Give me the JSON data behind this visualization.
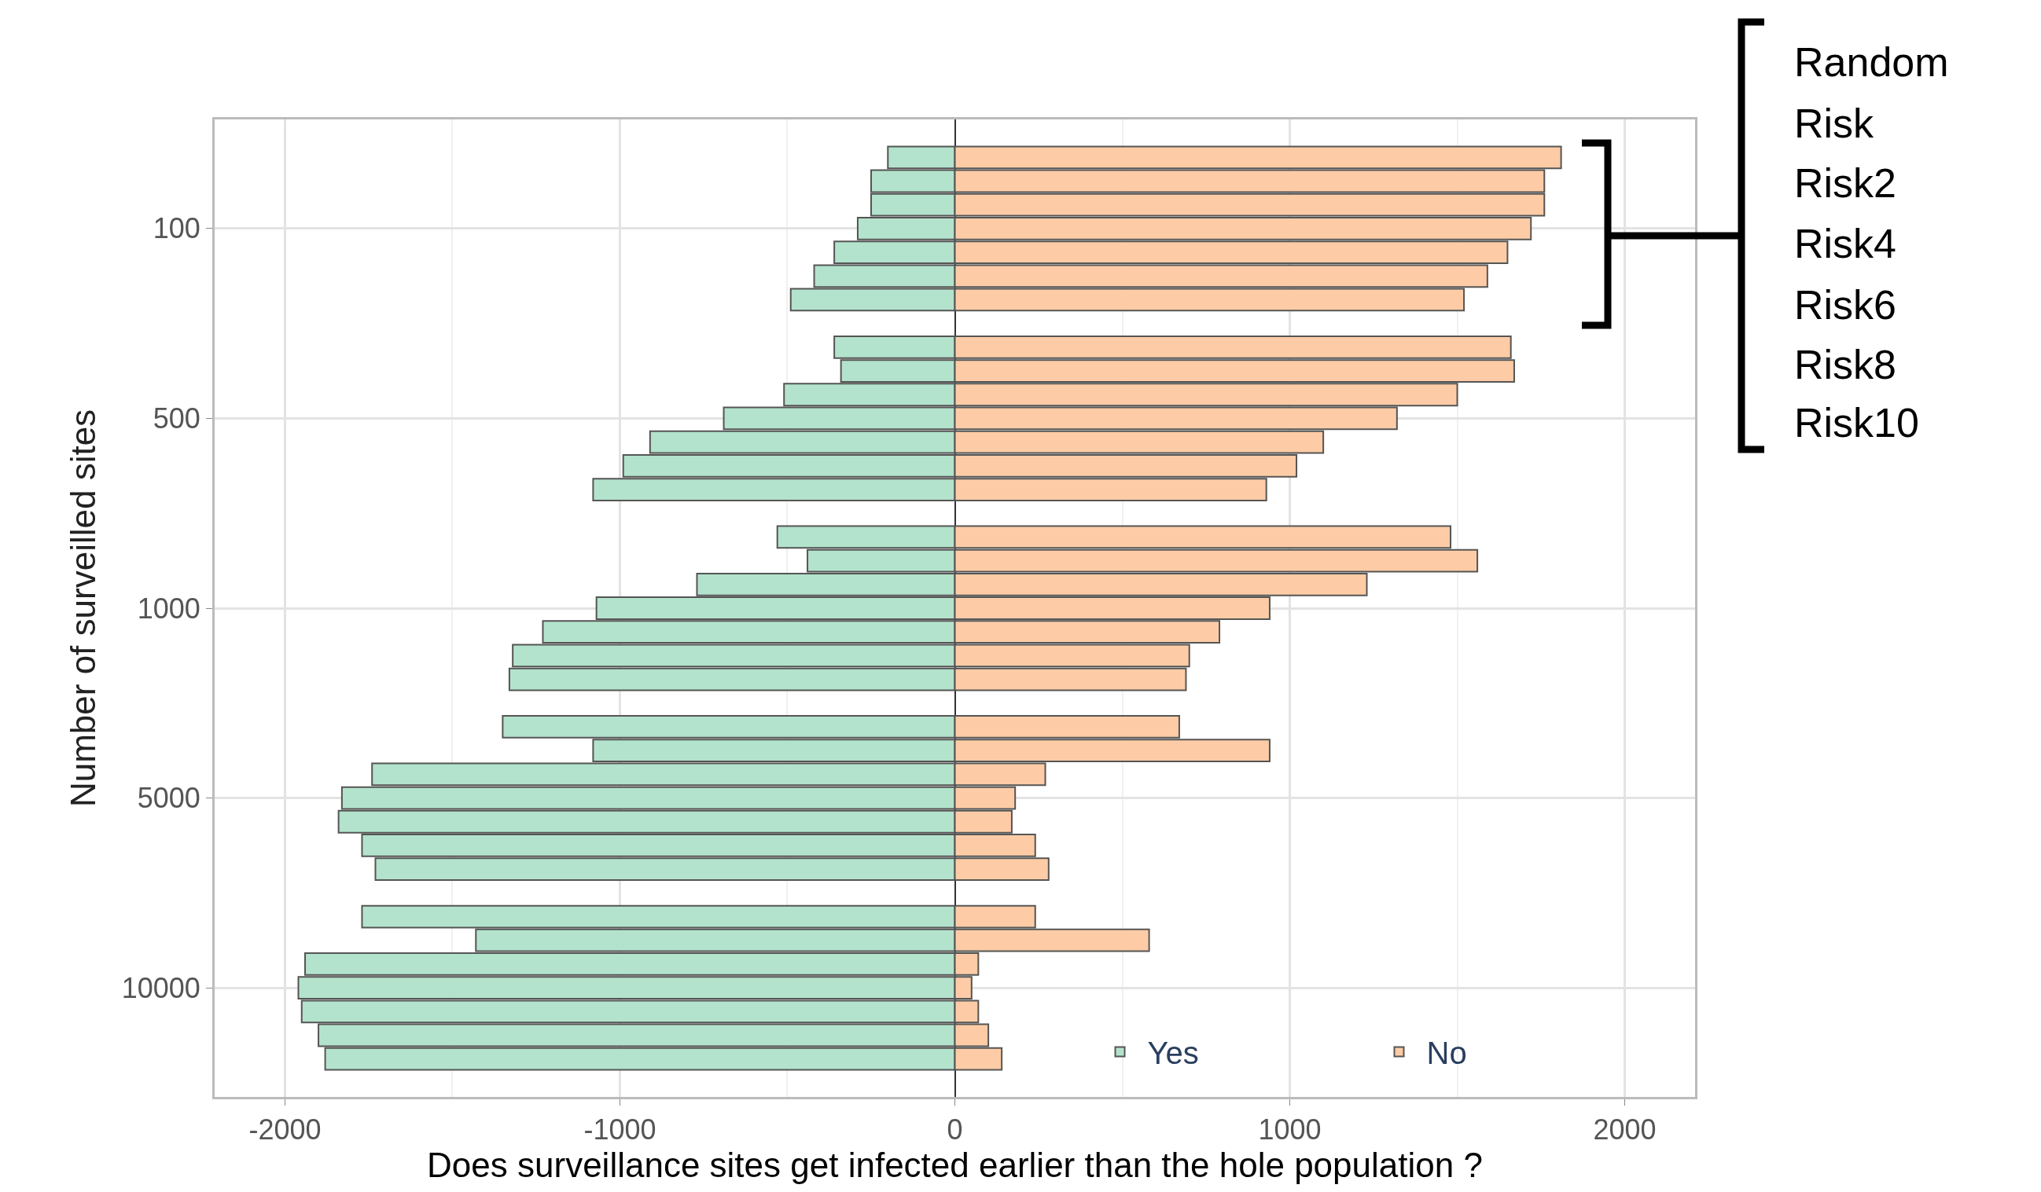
{
  "chart_data": {
    "type": "bar",
    "orientation": "horizontal",
    "stacked": true,
    "categories": [
      null,
      null,
      null,
      "100",
      null,
      null,
      null,
      null,
      null,
      null,
      null,
      "500",
      null,
      null,
      null,
      null,
      null,
      null,
      null,
      "1000",
      null,
      null,
      null,
      null,
      null,
      null,
      null,
      "5000",
      null,
      null,
      null,
      null,
      null,
      null,
      null,
      "10000",
      null,
      null,
      null
    ],
    "series": [
      {
        "name": "Yes",
        "color": "#b3e3cc",
        "values": [
          -200,
          -250,
          -250,
          -290,
          -360,
          -420,
          -490,
          null,
          -360,
          -340,
          -510,
          -690,
          -910,
          -990,
          -1080,
          null,
          -530,
          -440,
          -770,
          -1070,
          -1230,
          -1320,
          -1330,
          null,
          -1350,
          -1080,
          -1740,
          -1830,
          -1840,
          -1770,
          -1730,
          null,
          -1770,
          -1430,
          -1940,
          -1960,
          -1950,
          -1900,
          -1880
        ]
      },
      {
        "name": "No",
        "color": "#fdcca6",
        "values": [
          1810,
          1760,
          1760,
          1720,
          1650,
          1590,
          1520,
          null,
          1660,
          1670,
          1500,
          1320,
          1100,
          1020,
          930,
          null,
          1480,
          1560,
          1230,
          940,
          790,
          700,
          690,
          null,
          670,
          940,
          270,
          180,
          170,
          240,
          280,
          null,
          240,
          580,
          70,
          50,
          70,
          100,
          140
        ]
      }
    ],
    "xlim": [
      -2210,
      2210
    ],
    "xticks": [
      -2000,
      -1000,
      0,
      1000,
      2000
    ],
    "xlabel": "Does surveillance sites get infected earlier than the hole population ?",
    "ylabel": "Number of surveilled sites",
    "grid": true,
    "legend": "bottom right",
    "annotations": [
      "Random",
      "Risk",
      "Risk2",
      "Risk4",
      "Risk6",
      "Risk8",
      "Risk10"
    ]
  }
}
